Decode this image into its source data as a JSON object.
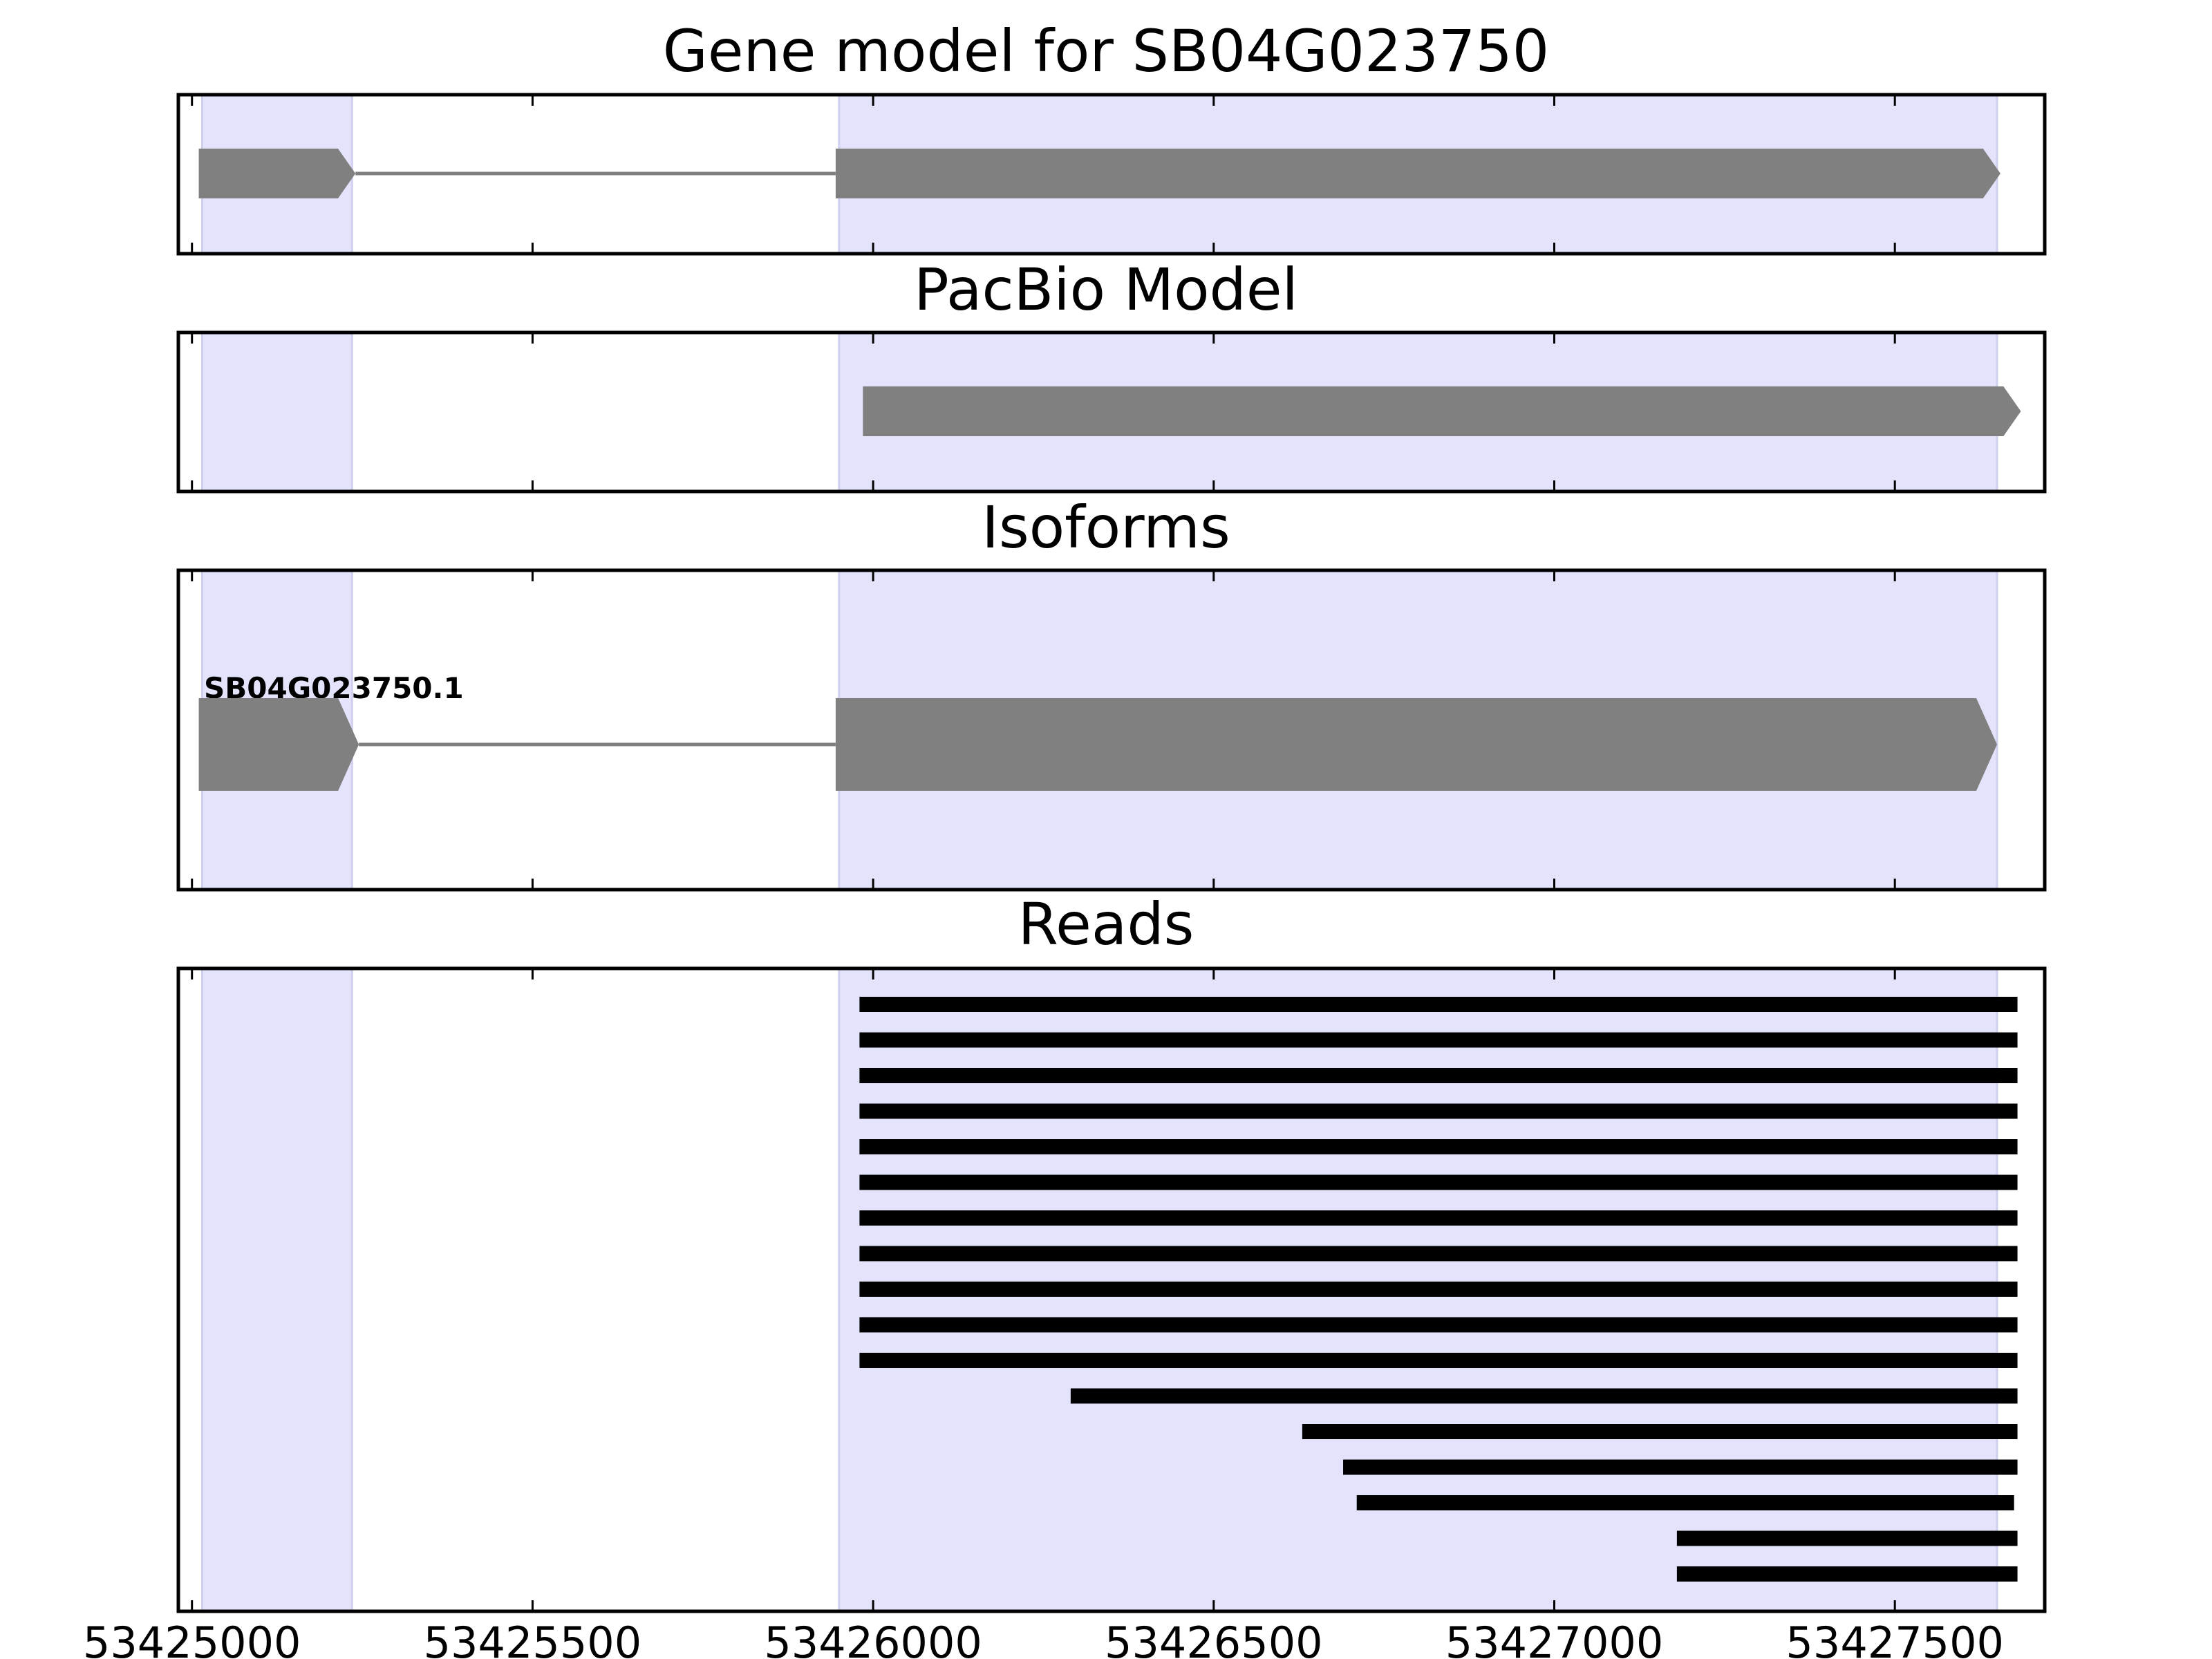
{
  "colors": {
    "exon_highlight": "#e3e3fc",
    "exon_highlight_edge": "#cfcfee",
    "feature": "#808080",
    "read": "#000000",
    "frame": "#000000"
  },
  "chart_data": {
    "type": "gene-track",
    "shared_x": {
      "lim": [
        53424980,
        53427720
      ],
      "ticks": [
        53425000,
        53425500,
        53426000,
        53426500,
        53427000,
        53427500
      ],
      "tick_labels": [
        "53425000",
        "53425500",
        "53426000",
        "53426500",
        "53427000",
        "53427500"
      ]
    },
    "exon_regions": [
      {
        "start": 53425015,
        "end": 53425235
      },
      {
        "start": 53425950,
        "end": 53427650
      }
    ],
    "panels": [
      {
        "key": "gene_model",
        "title": "Gene model for SB04G023750",
        "features": [
          {
            "exons": [
              [
                53425010,
                53425240
              ],
              [
                53425945,
                53427655
              ]
            ],
            "strand": "+",
            "thin": true
          }
        ]
      },
      {
        "key": "pacbio_model",
        "title": "PacBio Model",
        "features": [
          {
            "exons": [
              [
                53425985,
                53427685
              ]
            ],
            "strand": "+",
            "thin": true
          }
        ]
      },
      {
        "key": "isoforms",
        "title": "Isoforms",
        "features": [
          {
            "name": "SB04G023750.1",
            "exons": [
              [
                53425010,
                53425245
              ],
              [
                53425945,
                53427650
              ]
            ],
            "strand": "+",
            "thin": false
          }
        ]
      },
      {
        "key": "reads",
        "title": "Reads",
        "reads": [
          [
            53425980,
            53427680
          ],
          [
            53425980,
            53427680
          ],
          [
            53425980,
            53427680
          ],
          [
            53425980,
            53427680
          ],
          [
            53425980,
            53427680
          ],
          [
            53425980,
            53427680
          ],
          [
            53425980,
            53427680
          ],
          [
            53425980,
            53427680
          ],
          [
            53425980,
            53427680
          ],
          [
            53425980,
            53427680
          ],
          [
            53425980,
            53427680
          ],
          [
            53426290,
            53427680
          ],
          [
            53426630,
            53427680
          ],
          [
            53426690,
            53427680
          ],
          [
            53426710,
            53427675
          ],
          [
            53427180,
            53427680
          ],
          [
            53427180,
            53427680
          ]
        ]
      }
    ]
  }
}
